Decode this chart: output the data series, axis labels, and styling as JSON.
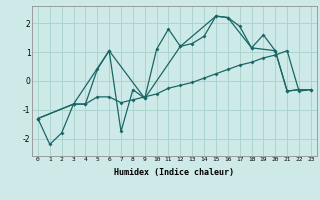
{
  "xlabel": "Humidex (Indice chaleur)",
  "background_color": "#ceeae8",
  "grid_color": "#a8d0cc",
  "line_color": "#1a6666",
  "xlim": [
    -0.5,
    23.5
  ],
  "ylim": [
    -2.6,
    2.6
  ],
  "xticks": [
    0,
    1,
    2,
    3,
    4,
    5,
    6,
    7,
    8,
    9,
    10,
    11,
    12,
    13,
    14,
    15,
    16,
    17,
    18,
    19,
    20,
    21,
    22,
    23
  ],
  "yticks": [
    -2,
    -1,
    0,
    1,
    2
  ],
  "series1_x": [
    0,
    1,
    2,
    3,
    4,
    5,
    6,
    7,
    8,
    9,
    10,
    11,
    12,
    13,
    14,
    15,
    16,
    17,
    18,
    19,
    20,
    21,
    22
  ],
  "series1_y": [
    -1.3,
    -2.2,
    -1.8,
    -0.8,
    -0.8,
    0.4,
    1.05,
    -1.75,
    -0.3,
    -0.6,
    1.1,
    1.8,
    1.2,
    1.3,
    1.55,
    2.25,
    2.2,
    1.9,
    1.15,
    1.6,
    1.05,
    -0.35,
    -0.3
  ],
  "series2_x": [
    0,
    3,
    4,
    5,
    6,
    7,
    8,
    9,
    10,
    11,
    12,
    13,
    14,
    15,
    16,
    17,
    18,
    19,
    20,
    21,
    22,
    23
  ],
  "series2_y": [
    -1.3,
    -0.8,
    -0.8,
    -0.55,
    -0.55,
    -0.75,
    -0.65,
    -0.55,
    -0.45,
    -0.25,
    -0.15,
    -0.05,
    0.1,
    0.25,
    0.4,
    0.55,
    0.65,
    0.8,
    0.9,
    1.05,
    -0.35,
    -0.3
  ],
  "series3_x": [
    0,
    3,
    6,
    9,
    12,
    15,
    16,
    18,
    20,
    21,
    22,
    23
  ],
  "series3_y": [
    -1.3,
    -0.8,
    1.05,
    -0.6,
    1.2,
    2.25,
    2.2,
    1.15,
    1.05,
    -0.35,
    -0.3,
    -0.3
  ]
}
